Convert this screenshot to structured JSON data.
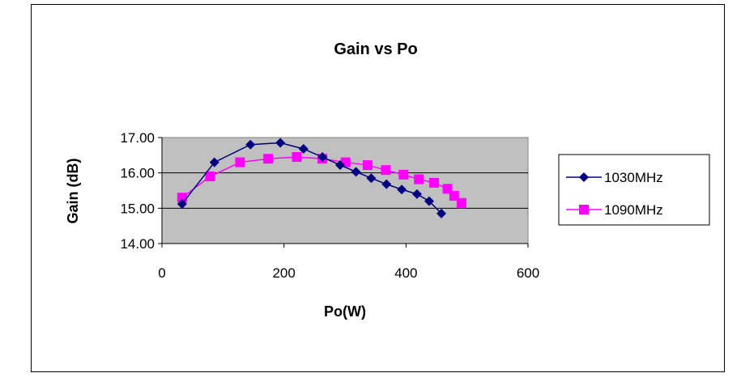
{
  "chart_data": {
    "type": "line",
    "title": "Gain vs Po",
    "xlabel": "Po(W)",
    "ylabel": "Gain (dB)",
    "xlim": [
      0,
      600
    ],
    "ylim": [
      14,
      17
    ],
    "x_ticks": [
      "0",
      "200",
      "400",
      "600"
    ],
    "y_ticks": [
      "14.00",
      "15.00",
      "16.00",
      "17.00"
    ],
    "grid": "horizontal",
    "plot_background": "#c0c0c0",
    "legend_position": "right",
    "series": [
      {
        "name": "1030MHz",
        "color": "#000080",
        "marker": "diamond",
        "x": [
          33,
          86,
          145,
          194,
          232,
          263,
          292,
          318,
          343,
          368,
          393,
          418,
          438,
          458
        ],
        "y": [
          15.12,
          16.3,
          16.8,
          16.85,
          16.68,
          16.45,
          16.22,
          16.03,
          15.85,
          15.68,
          15.53,
          15.4,
          15.2,
          14.85
        ]
      },
      {
        "name": "1090MHz",
        "color": "#ff00ff",
        "marker": "square",
        "x": [
          33,
          79,
          128,
          174,
          221,
          263,
          301,
          337,
          367,
          396,
          421,
          446,
          468,
          479,
          491
        ],
        "y": [
          15.3,
          15.9,
          16.3,
          16.4,
          16.45,
          16.4,
          16.3,
          16.22,
          16.08,
          15.95,
          15.82,
          15.72,
          15.55,
          15.35,
          15.15
        ]
      }
    ]
  }
}
